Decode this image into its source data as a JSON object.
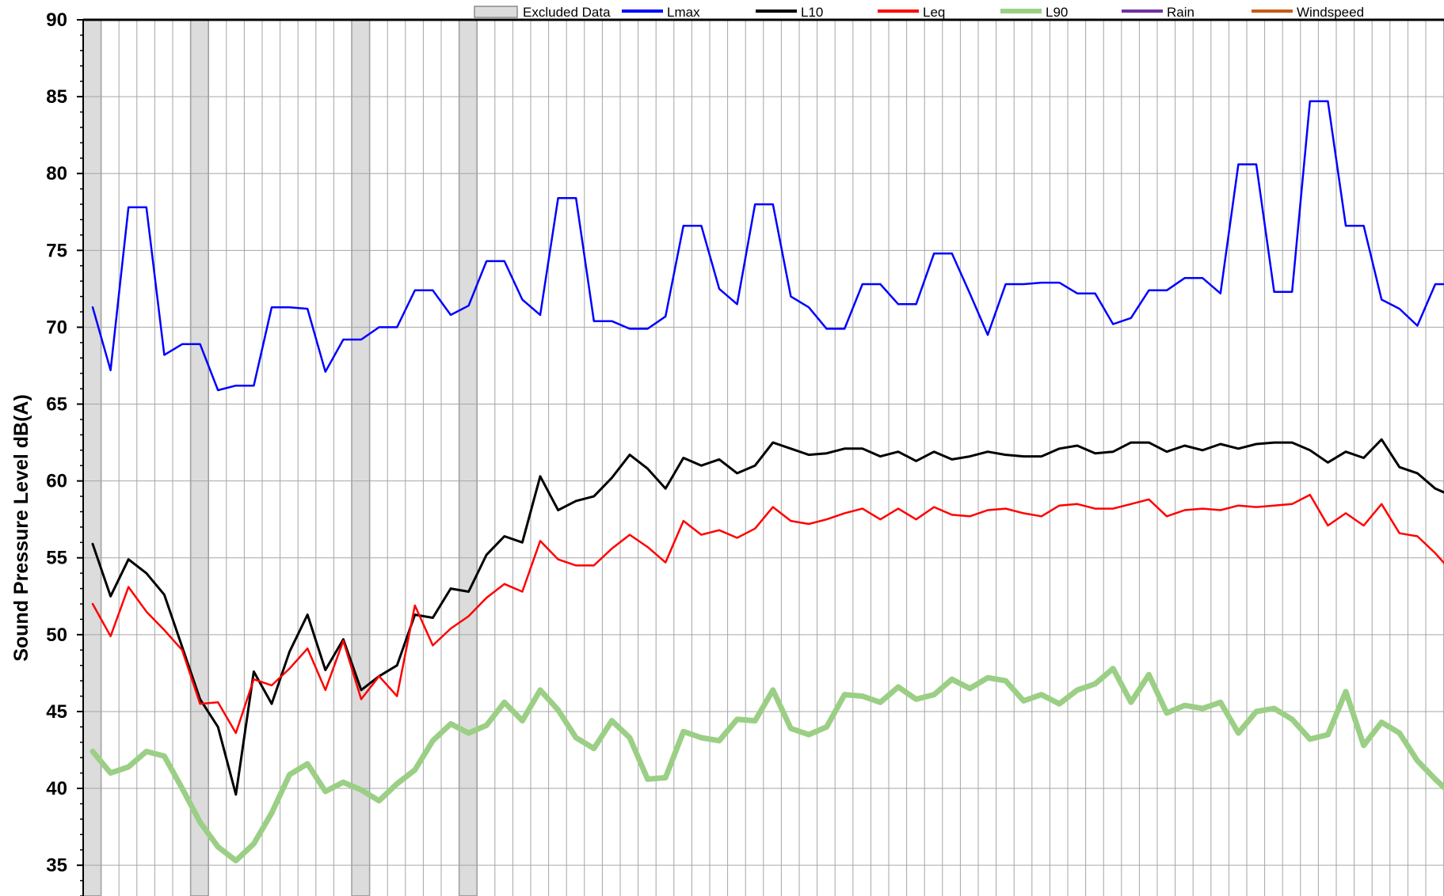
{
  "chart_data": {
    "type": "line",
    "title": "",
    "xlabel": "",
    "ylabel": "Sound Pressure Level dB(A)",
    "ylim": [
      33,
      90
    ],
    "yticks": [
      35,
      40,
      45,
      50,
      55,
      60,
      65,
      70,
      75,
      80,
      85,
      90
    ],
    "grid": true,
    "legend_position": "top",
    "excluded_intervals": [
      [
        0,
        1
      ],
      [
        6,
        7
      ],
      [
        15,
        16
      ],
      [
        21,
        22
      ]
    ],
    "series": [
      {
        "name": "Lmax",
        "color": "#0000ff",
        "values": [
          71.3,
          67.2,
          77.8,
          77.8,
          68.2,
          68.9,
          68.9,
          65.9,
          66.2,
          66.2,
          71.3,
          71.3,
          71.2,
          67.1,
          69.2,
          69.2,
          70.0,
          70.0,
          72.4,
          72.4,
          70.8,
          71.4,
          74.3,
          74.3,
          71.8,
          70.8,
          78.4,
          78.4,
          70.4,
          70.4,
          69.9,
          69.9,
          70.7,
          76.6,
          76.6,
          72.5,
          71.5,
          78.0,
          78.0,
          72.0,
          71.3,
          69.9,
          69.9,
          72.8,
          72.8,
          71.5,
          71.5,
          74.8,
          74.8,
          72.2,
          69.5,
          72.8,
          72.8,
          72.9,
          72.9,
          72.2,
          72.2,
          70.2,
          70.6,
          72.4,
          72.4,
          73.2,
          73.2,
          72.2,
          80.6,
          80.6,
          72.3,
          72.3,
          84.7,
          84.7,
          76.6,
          76.6,
          71.8,
          71.2,
          70.1,
          72.8,
          72.8
        ]
      },
      {
        "name": "L10",
        "color": "#000000",
        "values": [
          55.9,
          52.5,
          54.9,
          54.0,
          52.6,
          49.2,
          45.8,
          44.0,
          39.6,
          47.6,
          45.5,
          48.9,
          51.3,
          47.7,
          49.7,
          46.4,
          47.3,
          48.0,
          51.3,
          51.1,
          53.0,
          52.8,
          55.2,
          56.4,
          56.0,
          60.3,
          58.1,
          58.7,
          59.0,
          60.2,
          61.7,
          60.8,
          59.5,
          61.5,
          61.0,
          61.4,
          60.5,
          61.0,
          62.5,
          62.1,
          61.7,
          61.8,
          62.1,
          62.1,
          61.6,
          61.9,
          61.3,
          61.9,
          61.4,
          61.6,
          61.9,
          61.7,
          61.6,
          61.6,
          62.1,
          62.3,
          61.8,
          61.9,
          62.5,
          62.5,
          61.9,
          62.3,
          62.0,
          62.4,
          62.1,
          62.4,
          62.5,
          62.5,
          62.0,
          61.2,
          61.9,
          61.5,
          62.7,
          60.9,
          60.5,
          59.5,
          59.0
        ]
      },
      {
        "name": "Leq",
        "color": "#ff0000",
        "values": [
          52.0,
          49.9,
          53.1,
          51.5,
          50.3,
          49.0,
          45.5,
          45.6,
          43.6,
          47.1,
          46.7,
          47.8,
          49.1,
          46.4,
          49.6,
          45.8,
          47.3,
          46.0,
          51.9,
          49.3,
          50.4,
          51.2,
          52.4,
          53.3,
          52.8,
          56.1,
          54.9,
          54.5,
          54.5,
          55.6,
          56.5,
          55.7,
          54.7,
          57.4,
          56.5,
          56.8,
          56.3,
          56.9,
          58.3,
          57.4,
          57.2,
          57.5,
          57.9,
          58.2,
          57.5,
          58.2,
          57.5,
          58.3,
          57.8,
          57.7,
          58.1,
          58.2,
          57.9,
          57.7,
          58.4,
          58.5,
          58.2,
          58.2,
          58.5,
          58.8,
          57.7,
          58.1,
          58.2,
          58.1,
          58.4,
          58.3,
          58.4,
          58.5,
          59.1,
          57.1,
          57.9,
          57.1,
          58.5,
          56.6,
          56.4,
          55.3,
          54.0
        ]
      },
      {
        "name": "L90",
        "color": "#9bcf85",
        "values": [
          42.4,
          41.0,
          41.4,
          42.4,
          42.1,
          40.0,
          37.8,
          36.2,
          35.3,
          36.4,
          38.4,
          40.9,
          41.6,
          39.8,
          40.4,
          39.9,
          39.2,
          40.3,
          41.2,
          43.1,
          44.2,
          43.6,
          44.1,
          45.6,
          44.4,
          46.4,
          45.1,
          43.3,
          42.6,
          44.4,
          43.3,
          40.6,
          40.7,
          43.7,
          43.3,
          43.1,
          44.5,
          44.4,
          46.4,
          43.9,
          43.5,
          44.0,
          46.1,
          46.0,
          45.6,
          46.6,
          45.8,
          46.1,
          47.1,
          46.5,
          47.2,
          47.0,
          45.7,
          46.1,
          45.5,
          46.4,
          46.8,
          47.8,
          45.6,
          47.4,
          44.9,
          45.4,
          45.2,
          45.6,
          43.6,
          45.0,
          45.2,
          44.5,
          43.2,
          43.5,
          46.3,
          42.8,
          44.3,
          43.6,
          41.8,
          40.6,
          39.5
        ]
      },
      {
        "name": "Rain",
        "color": "#7030a0",
        "values": []
      },
      {
        "name": "Windspeed",
        "color": "#c55a11",
        "values": []
      }
    ],
    "legend": [
      {
        "label": "Excluded Data",
        "kind": "box",
        "color": "#dcdcdc"
      },
      {
        "label": "Lmax",
        "kind": "line",
        "color": "#0000ff"
      },
      {
        "label": "L10",
        "kind": "line",
        "color": "#000000"
      },
      {
        "label": "Leq",
        "kind": "line",
        "color": "#ff0000"
      },
      {
        "label": "L90",
        "kind": "line",
        "color": "#9bcf85"
      },
      {
        "label": "Rain",
        "kind": "line",
        "color": "#7030a0"
      },
      {
        "label": "Windspeed",
        "kind": "line",
        "color": "#c55a11"
      }
    ]
  }
}
